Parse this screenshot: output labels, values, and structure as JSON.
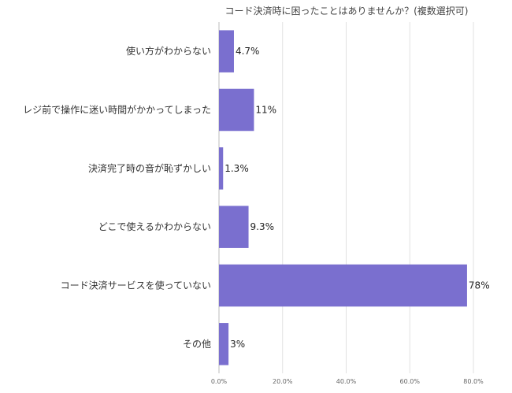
{
  "chart_data": {
    "type": "bar",
    "orientation": "horizontal",
    "title": "コード決済時に困ったことはありませんか？(複数選択可)",
    "categories": [
      "使い方がわからない",
      "レジ前で操作に迷い時間がかかってしまった",
      "決済完了時の音が恥ずかしい",
      "どこで使えるかわからない",
      "コード決済サービスを使っていない",
      "その他"
    ],
    "values": [
      4.7,
      11,
      1.3,
      9.3,
      78,
      3
    ],
    "value_labels": [
      "4.7%",
      "11%",
      "1.3%",
      "9.3%",
      "78%",
      "3%"
    ],
    "xlim": [
      0,
      80
    ],
    "x_ticks": [
      "0.0%",
      "20.0%",
      "40.0%",
      "60.0%",
      "80.0%"
    ],
    "grid": true,
    "colors": {
      "bar": "#7a6fcf"
    }
  }
}
